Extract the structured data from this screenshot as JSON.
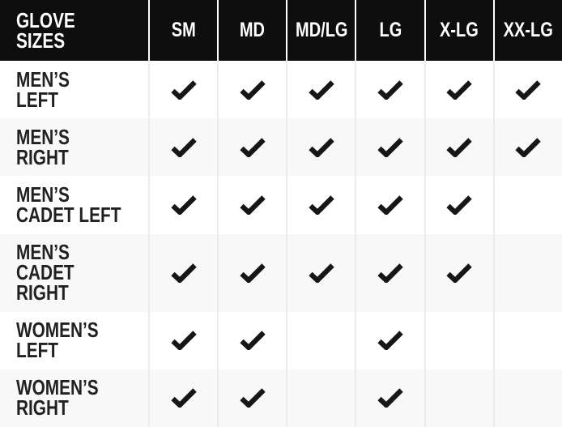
{
  "table": {
    "header": {
      "title": "GLOVE\nSIZES",
      "columns": [
        "SM",
        "MD",
        "MD/LG",
        "LG",
        "X-LG",
        "XX-LG"
      ]
    },
    "rows": [
      {
        "label": "MEN’S\nLEFT",
        "checks": [
          true,
          true,
          true,
          true,
          true,
          true
        ]
      },
      {
        "label": "MEN’S\nRIGHT",
        "checks": [
          true,
          true,
          true,
          true,
          true,
          true
        ]
      },
      {
        "label": "MEN’S\nCADET LEFT",
        "checks": [
          true,
          true,
          true,
          true,
          true,
          false
        ]
      },
      {
        "label": "MEN’S\nCADET RIGHT",
        "checks": [
          true,
          true,
          true,
          true,
          true,
          false
        ]
      },
      {
        "label": "WOMEN’S\nLEFT",
        "checks": [
          true,
          true,
          false,
          true,
          false,
          false
        ]
      },
      {
        "label": "WOMEN’S\nRIGHT",
        "checks": [
          true,
          true,
          false,
          true,
          false,
          false
        ]
      }
    ],
    "check_icon": "checkmark",
    "colors": {
      "header_bg": "#0e0e0e",
      "header_text": "#ffffff",
      "row_bg": "#ffffff",
      "row_alt_bg": "#f8f8f8",
      "label_text": "#212121",
      "check": "#161616",
      "header_divider": "#ffffff",
      "body_divider": "#ebebeb"
    }
  }
}
